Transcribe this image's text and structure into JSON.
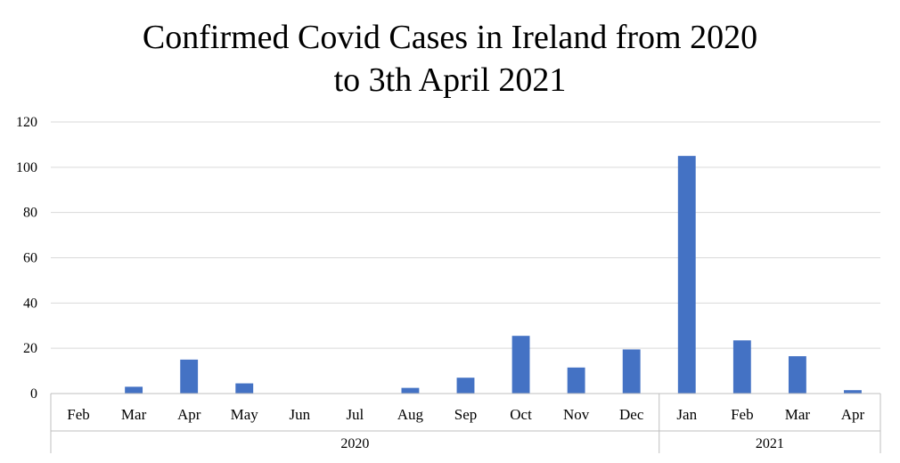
{
  "chart_data": {
    "type": "bar",
    "title_lines": [
      "Confirmed Covid Cases in Ireland from 2020",
      "to 3th April 2021"
    ],
    "categories": [
      "Feb",
      "Mar",
      "Apr",
      "May",
      "Jun",
      "Jul",
      "Aug",
      "Sep",
      "Oct",
      "Nov",
      "Dec",
      "Jan",
      "Feb",
      "Mar",
      "Apr"
    ],
    "groups": [
      {
        "label": "2020",
        "count": 11
      },
      {
        "label": "2021",
        "count": 4
      }
    ],
    "values": [
      0,
      3,
      15,
      4.5,
      0,
      0,
      2.5,
      7,
      25.5,
      11.5,
      19.5,
      105,
      23.5,
      16.5,
      1.5
    ],
    "ylim": [
      0,
      120
    ],
    "yticks": [
      0,
      20,
      40,
      60,
      80,
      100,
      120
    ],
    "grid": true,
    "bar_color": "#4472C4",
    "grid_color": "#d9d9d9",
    "axis_color": "#bfbfbf"
  }
}
